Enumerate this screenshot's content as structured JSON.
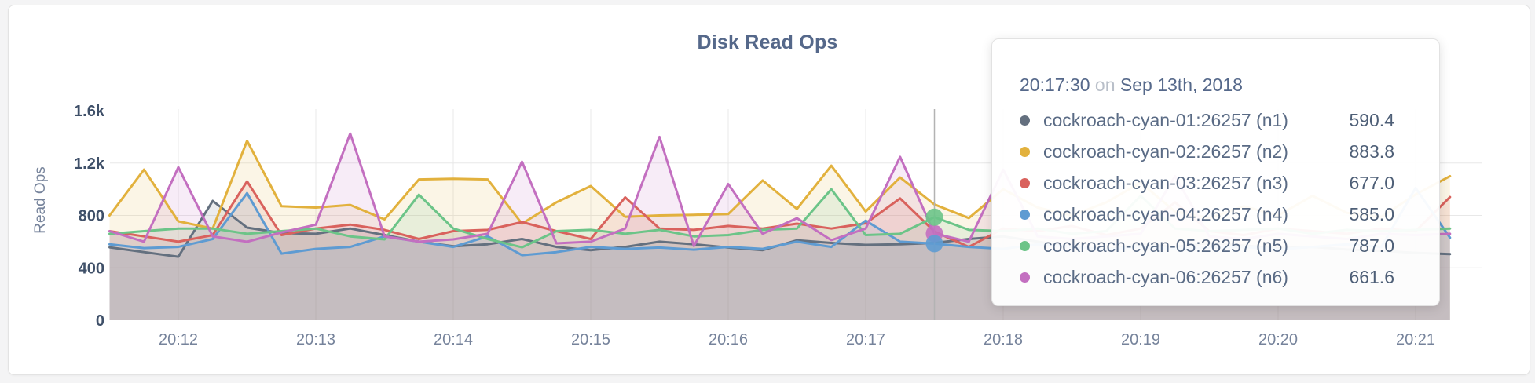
{
  "chart_data": {
    "type": "line",
    "title": "Disk Read Ops",
    "ylabel": "Read Ops",
    "x_start": "20:11:30",
    "sample_interval_seconds": 15,
    "x_ticks": [
      "20:12",
      "20:13",
      "20:14",
      "20:15",
      "20:16",
      "20:17",
      "20:18",
      "20:19",
      "20:20",
      "20:21"
    ],
    "y_ticks": [
      {
        "label": "0",
        "value": 0
      },
      {
        "label": "400",
        "value": 400
      },
      {
        "label": "800",
        "value": 800
      },
      {
        "label": "1.2k",
        "value": 1200
      },
      {
        "label": "1.6k",
        "value": 1600
      }
    ],
    "ylim": [
      0,
      1600
    ],
    "grid": {
      "horizontal_values": [
        400,
        800,
        1200
      ],
      "vertical_at_ticks": true,
      "color": "#e8e8e8"
    },
    "series": [
      {
        "name": "cockroach-cyan-01:26257",
        "node": "n1",
        "color": "#64707f",
        "fill_opacity": 0.13,
        "values": [
          557,
          520,
          485,
          911,
          707,
          665,
          660,
          700,
          650,
          600,
          565,
          580,
          620,
          560,
          535,
          560,
          600,
          580,
          555,
          535,
          610,
          590,
          575,
          580,
          590.4,
          620,
          640,
          600,
          560,
          540,
          580,
          560,
          590,
          570,
          550,
          560,
          540,
          530,
          515,
          505
        ]
      },
      {
        "name": "cockroach-cyan-02:26257",
        "node": "n2",
        "color": "#e2b13d",
        "fill_opacity": 0.13,
        "values": [
          800,
          1150,
          755,
          700,
          1370,
          870,
          860,
          880,
          770,
          1075,
          1080,
          1075,
          737,
          900,
          1025,
          790,
          800,
          805,
          810,
          1067,
          850,
          1180,
          830,
          1090,
          883.8,
          780,
          1000,
          860,
          800,
          900,
          1050,
          830,
          780,
          870,
          800,
          950,
          820,
          790,
          960,
          1100
        ]
      },
      {
        "name": "cockroach-cyan-03:26257",
        "node": "n3",
        "color": "#d9625d",
        "fill_opacity": 0.13,
        "values": [
          680,
          640,
          600,
          650,
          1060,
          650,
          700,
          730,
          690,
          620,
          680,
          690,
          749,
          680,
          620,
          938,
          700,
          690,
          720,
          700,
          737,
          700,
          740,
          930,
          677.0,
          560,
          700,
          680,
          720,
          650,
          700,
          900,
          680,
          650,
          700,
          680,
          660,
          700,
          680,
          940
        ]
      },
      {
        "name": "cockroach-cyan-04:26257",
        "node": "n4",
        "color": "#5e9bd2",
        "fill_opacity": 0.13,
        "values": [
          580,
          551,
          560,
          620,
          970,
          509,
          545,
          560,
          640,
          600,
          560,
          640,
          497,
          520,
          560,
          545,
          555,
          539,
          560,
          545,
          600,
          560,
          760,
          600,
          585.0,
          560,
          545,
          580,
          560,
          540,
          560,
          545,
          555,
          560,
          540,
          560,
          580,
          560,
          1010,
          630
        ]
      },
      {
        "name": "cockroach-cyan-05:26257",
        "node": "n5",
        "color": "#6cc488",
        "fill_opacity": 0.13,
        "values": [
          660,
          680,
          700,
          700,
          660,
          680,
          700,
          640,
          617,
          958,
          700,
          620,
          557,
          680,
          690,
          660,
          690,
          640,
          650,
          690,
          700,
          1000,
          650,
          660,
          787.0,
          690,
          680,
          700,
          660,
          680,
          950,
          700,
          680,
          690,
          700,
          660,
          690,
          680,
          690,
          700
        ]
      },
      {
        "name": "cockroach-cyan-06:26257",
        "node": "n6",
        "color": "#c36fc0",
        "fill_opacity": 0.13,
        "values": [
          680,
          600,
          1168,
          640,
          599,
          670,
          729,
          1425,
          640,
          600,
          617,
          660,
          1210,
          587,
          600,
          700,
          1400,
          567,
          1040,
          660,
          779,
          611,
          700,
          1247,
          661.6,
          600,
          1150,
          640,
          620,
          640,
          660,
          1100,
          640,
          620,
          660,
          640,
          620,
          660,
          650,
          660
        ]
      }
    ],
    "hover": {
      "time": "20:17:30",
      "index": 24,
      "line_color": "#b3b3b3",
      "dot_series": [
        "n6",
        "n5",
        "n4"
      ],
      "dot_radius": 11
    }
  },
  "tooltip": {
    "time": "20:17:30",
    "connector": "on",
    "date": "Sep 13th, 2018",
    "rows": [
      {
        "name": "cockroach-cyan-01:26257 (n1)",
        "value": "590.4",
        "color": "#64707f"
      },
      {
        "name": "cockroach-cyan-02:26257 (n2)",
        "value": "883.8",
        "color": "#e2b13d"
      },
      {
        "name": "cockroach-cyan-03:26257 (n3)",
        "value": "677.0",
        "color": "#d9625d"
      },
      {
        "name": "cockroach-cyan-04:26257 (n4)",
        "value": "585.0",
        "color": "#5e9bd2"
      },
      {
        "name": "cockroach-cyan-05:26257 (n5)",
        "value": "787.0",
        "color": "#6cc488"
      },
      {
        "name": "cockroach-cyan-06:26257 (n6)",
        "value": "661.6",
        "color": "#c36fc0"
      }
    ]
  }
}
